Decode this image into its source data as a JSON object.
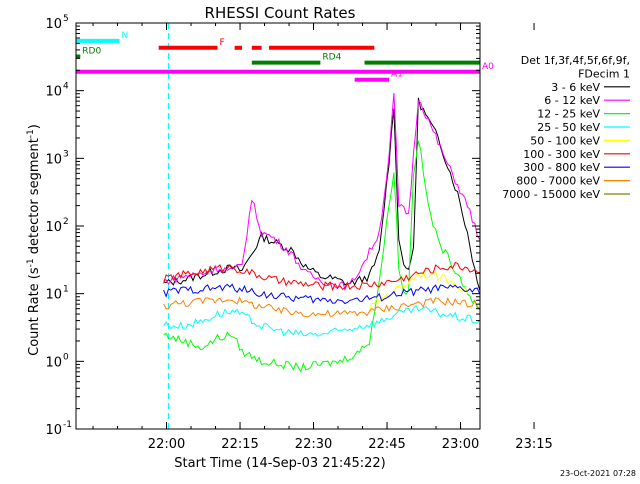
{
  "chart_data": {
    "type": "line",
    "title": "RHESSI Count Rates",
    "xlabel": "Start Time (14-Sep-03 21:45:22)",
    "ylabel_parts": [
      "Count Rate (s",
      "-1",
      " detector segment",
      "-1",
      ")"
    ],
    "ylog": true,
    "ylim": [
      0.1,
      100000
    ],
    "yticks": [
      {
        "v": 0.1,
        "base": "10",
        "exp": "-1"
      },
      {
        "v": 1,
        "base": "10",
        "exp": "0"
      },
      {
        "v": 10,
        "base": "10",
        "exp": "1"
      },
      {
        "v": 100,
        "base": "10",
        "exp": "2"
      },
      {
        "v": 1000,
        "base": "10",
        "exp": "3"
      },
      {
        "v": 10000,
        "base": "10",
        "exp": "4"
      },
      {
        "v": 100000,
        "base": "10",
        "exp": "5"
      }
    ],
    "xlim_min": [
      0,
      132
    ],
    "xticks": [
      {
        "t": 14.6,
        "label": "22:00"
      },
      {
        "t": 29.6,
        "label": "22:15"
      },
      {
        "t": 44.6,
        "label": "22:30"
      },
      {
        "t": 59.6,
        "label": "22:45"
      },
      {
        "t": 74.6,
        "label": "23:00"
      },
      {
        "t": 89.6,
        "label": "23:15"
      }
    ],
    "legend_header": [
      "Det 1f,3f,4f,5f,6f,9f,",
      "FDecim 1"
    ],
    "series": [
      {
        "name": "3 - 6 keV",
        "color": "#000000",
        "points": [
          [
            14,
            14
          ],
          [
            18,
            16
          ],
          [
            22,
            19
          ],
          [
            25,
            22
          ],
          [
            28,
            24
          ],
          [
            30,
            22
          ],
          [
            34,
            70
          ],
          [
            36,
            60
          ],
          [
            40,
            45
          ],
          [
            43,
            25
          ],
          [
            46,
            18
          ],
          [
            48,
            17
          ],
          [
            52,
            14
          ],
          [
            56,
            18
          ],
          [
            58,
            40
          ],
          [
            60,
            900
          ],
          [
            61,
            6000
          ],
          [
            62,
            60
          ],
          [
            63,
            30
          ],
          [
            64,
            20
          ],
          [
            65,
            50
          ],
          [
            66,
            7000
          ],
          [
            70,
            2000
          ],
          [
            74,
            300
          ],
          [
            76,
            80
          ],
          [
            78,
            15
          ],
          [
            80,
            8
          ],
          [
            84,
            4
          ]
        ]
      },
      {
        "name": "6 - 12 keV",
        "color": "#ff00ff",
        "points": [
          [
            14,
            15
          ],
          [
            18,
            18
          ],
          [
            22,
            20
          ],
          [
            25,
            24
          ],
          [
            28,
            22
          ],
          [
            30,
            26
          ],
          [
            32,
            250
          ],
          [
            34,
            80
          ],
          [
            36,
            70
          ],
          [
            40,
            40
          ],
          [
            43,
            20
          ],
          [
            46,
            16
          ],
          [
            48,
            14
          ],
          [
            52,
            13
          ],
          [
            55,
            30
          ],
          [
            58,
            80
          ],
          [
            60,
            1000
          ],
          [
            61,
            9000
          ],
          [
            62,
            200
          ],
          [
            64,
            150
          ],
          [
            66,
            8000
          ],
          [
            69,
            2500
          ],
          [
            72,
            800
          ],
          [
            76,
            200
          ],
          [
            78,
            80
          ],
          [
            80,
            20
          ],
          [
            84,
            10
          ]
        ]
      },
      {
        "name": "12 - 25 keV",
        "color": "#00ff00",
        "points": [
          [
            14,
            2.5
          ],
          [
            18,
            2
          ],
          [
            22,
            1.6
          ],
          [
            25,
            2.2
          ],
          [
            28,
            2.5
          ],
          [
            30,
            1.4
          ],
          [
            34,
            1
          ],
          [
            38,
            0.9
          ],
          [
            42,
            0.8
          ],
          [
            46,
            0.9
          ],
          [
            50,
            1
          ],
          [
            54,
            1.4
          ],
          [
            56,
            2
          ],
          [
            58,
            15
          ],
          [
            60,
            200
          ],
          [
            61,
            700
          ],
          [
            62,
            25
          ],
          [
            63,
            10
          ],
          [
            64,
            12
          ],
          [
            65,
            600
          ],
          [
            66,
            2000
          ],
          [
            68,
            200
          ],
          [
            70,
            60
          ],
          [
            74,
            20
          ],
          [
            78,
            6
          ],
          [
            82,
            3.5
          ],
          [
            84,
            2.5
          ]
        ]
      },
      {
        "name": "25 - 50 keV",
        "color": "#00ffff",
        "points": [
          [
            14,
            3.5
          ],
          [
            18,
            3.3
          ],
          [
            22,
            4
          ],
          [
            25,
            5
          ],
          [
            28,
            5.5
          ],
          [
            30,
            4.8
          ],
          [
            34,
            3.3
          ],
          [
            38,
            2.8
          ],
          [
            42,
            2.5
          ],
          [
            46,
            2.5
          ],
          [
            50,
            2.8
          ],
          [
            54,
            3.3
          ],
          [
            58,
            3.8
          ],
          [
            60,
            4.5
          ],
          [
            62,
            5
          ],
          [
            64,
            5.5
          ],
          [
            66,
            6
          ],
          [
            70,
            5.2
          ],
          [
            74,
            4.5
          ],
          [
            78,
            4
          ],
          [
            82,
            3.5
          ],
          [
            84,
            3.3
          ]
        ]
      },
      {
        "name": "50 - 100 keV",
        "color": "#ffff00",
        "points": [
          [
            56,
            6
          ],
          [
            58,
            8
          ],
          [
            60,
            10
          ],
          [
            62,
            12
          ],
          [
            64,
            15
          ],
          [
            66,
            20
          ],
          [
            70,
            18
          ],
          [
            74,
            14
          ],
          [
            76,
            10
          ]
        ]
      },
      {
        "name": "100 - 300 keV",
        "color": "#ff0000",
        "points": [
          [
            14,
            16
          ],
          [
            16,
            18
          ],
          [
            20,
            20
          ],
          [
            24,
            23
          ],
          [
            28,
            25
          ],
          [
            30,
            22
          ],
          [
            34,
            18
          ],
          [
            38,
            15
          ],
          [
            42,
            14
          ],
          [
            46,
            13
          ],
          [
            50,
            13
          ],
          [
            54,
            13
          ],
          [
            58,
            14
          ],
          [
            62,
            16
          ],
          [
            66,
            20
          ],
          [
            70,
            24
          ],
          [
            74,
            26
          ],
          [
            78,
            22
          ],
          [
            82,
            18
          ],
          [
            84,
            15
          ]
        ]
      },
      {
        "name": "300 - 800 keV",
        "color": "#0000ff",
        "points": [
          [
            14,
            10
          ],
          [
            16,
            11
          ],
          [
            20,
            11.5
          ],
          [
            24,
            12
          ],
          [
            28,
            12.5
          ],
          [
            30,
            11.5
          ],
          [
            34,
            10
          ],
          [
            38,
            9
          ],
          [
            42,
            8.5
          ],
          [
            46,
            8
          ],
          [
            50,
            8
          ],
          [
            54,
            8.2
          ],
          [
            58,
            8.8
          ],
          [
            62,
            10
          ],
          [
            66,
            11
          ],
          [
            70,
            12
          ],
          [
            74,
            12
          ],
          [
            78,
            11
          ],
          [
            82,
            10
          ],
          [
            84,
            9
          ]
        ]
      },
      {
        "name": "800 - 7000 keV",
        "color": "#ff8000",
        "points": [
          [
            14,
            6.5
          ],
          [
            16,
            7
          ],
          [
            20,
            7.5
          ],
          [
            24,
            8
          ],
          [
            28,
            8.5
          ],
          [
            30,
            7.5
          ],
          [
            34,
            6.5
          ],
          [
            38,
            5.5
          ],
          [
            42,
            5.2
          ],
          [
            46,
            5
          ],
          [
            50,
            5
          ],
          [
            54,
            5.2
          ],
          [
            58,
            5.8
          ],
          [
            62,
            6.5
          ],
          [
            66,
            7.2
          ],
          [
            70,
            7.8
          ],
          [
            74,
            7.5
          ],
          [
            78,
            6.8
          ],
          [
            82,
            6
          ],
          [
            84,
            5.5
          ]
        ]
      },
      {
        "name": "7000 - 15000 keV",
        "color": "#808000",
        "points": []
      }
    ],
    "state_bars": [
      {
        "name": "N",
        "color": "#00ffff",
        "y": 54500,
        "segments": [
          [
            -20,
            5
          ],
          [
            86,
            128
          ]
        ]
      },
      {
        "name": "F",
        "color": "#ff0000",
        "y": 43000,
        "segments": [
          [
            13,
            25
          ],
          [
            28.5,
            30
          ],
          [
            32,
            34
          ],
          [
            35.5,
            57
          ]
        ]
      },
      {
        "name": "RD0",
        "color": "#008000",
        "y": 32000,
        "segments": [
          [
            -20,
            -3
          ]
        ]
      },
      {
        "name": "RD4",
        "color": "#008000",
        "y": 26000,
        "segments": [
          [
            -20,
            -8
          ],
          [
            32,
            46
          ],
          [
            55,
            86
          ],
          [
            97,
            128
          ]
        ]
      },
      {
        "name": "A0",
        "color": "#ff00ff",
        "y": 19000,
        "segments": [
          [
            -20,
            128
          ]
        ]
      },
      {
        "name": "A1",
        "color": "#ff00ff",
        "y": 14500,
        "segments": [
          [
            53,
            60
          ]
        ]
      }
    ],
    "vlines_dashed": [
      {
        "t": 15,
        "color": "#00ffff"
      },
      {
        "t": 117.5,
        "color": "#00ffff"
      }
    ],
    "vlines_solid": [
      {
        "t": 91,
        "color": "#00ffff"
      }
    ],
    "footer_date": "23-Oct-2021 07:28"
  }
}
